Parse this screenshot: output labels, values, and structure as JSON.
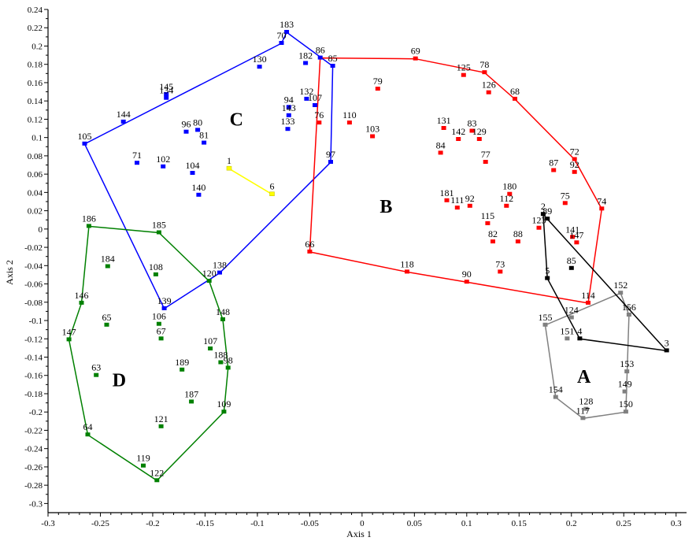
{
  "chart_data": {
    "type": "scatter",
    "xlabel": "Axis 1",
    "ylabel": "Axis 2",
    "xlim": [
      -0.3,
      0.31
    ],
    "ylim": [
      -0.31,
      0.24
    ],
    "x_ticks": [
      -0.3,
      -0.25,
      -0.2,
      -0.15,
      -0.1,
      -0.05,
      0,
      0.05,
      0.1,
      0.15,
      0.2,
      0.25,
      0.3
    ],
    "y_ticks": [
      -0.3,
      -0.28,
      -0.26,
      -0.24,
      -0.22,
      -0.2,
      -0.18,
      -0.16,
      -0.14,
      -0.12,
      -0.1,
      -0.08,
      -0.06,
      -0.04,
      -0.02,
      0,
      0.02,
      0.04,
      0.06,
      0.08,
      0.1,
      0.12,
      0.14,
      0.16,
      0.18,
      0.2,
      0.22,
      0.24
    ],
    "x_tick_labels": [
      "-0.3",
      "-0.25",
      "-0.2",
      "-0.15",
      "-0.1",
      "-0.05",
      "0",
      "0.05",
      "0.1",
      "0.15",
      "0.2",
      "0.25",
      "0.3"
    ],
    "y_tick_labels": [
      "-0.3",
      "-0.28",
      "-0.26",
      "-0.24",
      "-0.22",
      "-0.2",
      "-0.18",
      "-0.16",
      "-0.14",
      "-0.12",
      "-0.1",
      "-0.08",
      "-0.06",
      "-0.04",
      "-0.02",
      "0",
      "0.02",
      "0.04",
      "0.06",
      "0.08",
      "0.1",
      "0.12",
      "0.14",
      "0.16",
      "0.18",
      "0.2",
      "0.22",
      "0.24"
    ],
    "grid": false,
    "series": [
      {
        "label": "C",
        "color": "#0000ff",
        "label_pos": [
          -0.12,
          0.113
        ],
        "hull": [
          "105",
          "70",
          "183",
          "85",
          "97",
          "138",
          "139",
          "105"
        ],
        "points": [
          {
            "id": "183",
            "x": -0.072,
            "y": 0.215
          },
          {
            "id": "70",
            "x": -0.077,
            "y": 0.203
          },
          {
            "id": "182",
            "x": -0.054,
            "y": 0.181
          },
          {
            "id": "86",
            "x": -0.04,
            "y": 0.187
          },
          {
            "id": "85",
            "x": -0.028,
            "y": 0.178
          },
          {
            "id": "130",
            "x": -0.098,
            "y": 0.177
          },
          {
            "id": "145",
            "x": -0.187,
            "y": 0.147
          },
          {
            "id": "134",
            "x": -0.187,
            "y": 0.143
          },
          {
            "id": "144",
            "x": -0.228,
            "y": 0.117
          },
          {
            "id": "105",
            "x": -0.265,
            "y": 0.093
          },
          {
            "id": "132",
            "x": -0.053,
            "y": 0.142
          },
          {
            "id": "107",
            "x": -0.045,
            "y": 0.135
          },
          {
            "id": "94",
            "x": -0.07,
            "y": 0.133
          },
          {
            "id": "143",
            "x": -0.07,
            "y": 0.124
          },
          {
            "id": "133",
            "x": -0.071,
            "y": 0.109
          },
          {
            "id": "80",
            "x": -0.157,
            "y": 0.108
          },
          {
            "id": "96",
            "x": -0.168,
            "y": 0.106
          },
          {
            "id": "81",
            "x": -0.151,
            "y": 0.094
          },
          {
            "id": "71",
            "x": -0.215,
            "y": 0.072
          },
          {
            "id": "102",
            "x": -0.19,
            "y": 0.068
          },
          {
            "id": "104",
            "x": -0.162,
            "y": 0.061
          },
          {
            "id": "140",
            "x": -0.156,
            "y": 0.037
          },
          {
            "id": "97",
            "x": -0.03,
            "y": 0.073
          },
          {
            "id": "138",
            "x": -0.136,
            "y": -0.048
          },
          {
            "id": "139",
            "x": -0.189,
            "y": -0.087
          }
        ]
      },
      {
        "label": "B",
        "color": "#ff0000",
        "label_pos": [
          0.023,
          0.018
        ],
        "hull": [
          "86",
          "69",
          "78",
          "68",
          "72",
          "74",
          "114",
          "90",
          "118",
          "66",
          "86"
        ],
        "points": [
          {
            "id": "69",
            "x": 0.051,
            "y": 0.186
          },
          {
            "id": "78",
            "x": 0.117,
            "y": 0.171
          },
          {
            "id": "125",
            "x": 0.097,
            "y": 0.168
          },
          {
            "id": "126",
            "x": 0.121,
            "y": 0.149
          },
          {
            "id": "68",
            "x": 0.146,
            "y": 0.142
          },
          {
            "id": "79",
            "x": 0.015,
            "y": 0.153
          },
          {
            "id": "110",
            "x": -0.012,
            "y": 0.116
          },
          {
            "id": "76",
            "x": -0.041,
            "y": 0.116
          },
          {
            "id": "103",
            "x": 0.01,
            "y": 0.101
          },
          {
            "id": "131",
            "x": 0.078,
            "y": 0.11
          },
          {
            "id": "83",
            "x": 0.105,
            "y": 0.107
          },
          {
            "id": "142",
            "x": 0.092,
            "y": 0.098
          },
          {
            "id": "129",
            "x": 0.112,
            "y": 0.098
          },
          {
            "id": "84",
            "x": 0.075,
            "y": 0.083
          },
          {
            "id": "77",
            "x": 0.118,
            "y": 0.073
          },
          {
            "id": "72",
            "x": 0.203,
            "y": 0.076
          },
          {
            "id": "87",
            "x": 0.183,
            "y": 0.064
          },
          {
            "id": "92",
            "x": 0.203,
            "y": 0.062
          },
          {
            "id": "74",
            "x": 0.229,
            "y": 0.022
          },
          {
            "id": "180",
            "x": 0.141,
            "y": 0.038
          },
          {
            "id": "181",
            "x": 0.081,
            "y": 0.031
          },
          {
            "id": "111",
            "x": 0.091,
            "y": 0.023
          },
          {
            "id": "92",
            "x": 0.103,
            "y": 0.025
          },
          {
            "id": "112",
            "x": 0.138,
            "y": 0.025
          },
          {
            "id": "75",
            "x": 0.194,
            "y": 0.028
          },
          {
            "id": "115",
            "x": 0.12,
            "y": 0.006
          },
          {
            "id": "82",
            "x": 0.125,
            "y": -0.014
          },
          {
            "id": "88",
            "x": 0.149,
            "y": -0.014
          },
          {
            "id": "123",
            "x": 0.169,
            "y": 0.001
          },
          {
            "id": "141",
            "x": 0.201,
            "y": -0.009
          },
          {
            "id": "147",
            "x": 0.205,
            "y": -0.015
          },
          {
            "id": "66",
            "x": -0.05,
            "y": -0.025
          },
          {
            "id": "118",
            "x": 0.043,
            "y": -0.047
          },
          {
            "id": "73",
            "x": 0.132,
            "y": -0.047
          },
          {
            "id": "90",
            "x": 0.1,
            "y": -0.058
          },
          {
            "id": "114",
            "x": 0.216,
            "y": -0.081
          }
        ]
      },
      {
        "label": "D",
        "color": "#008000",
        "label_pos": [
          -0.232,
          -0.172
        ],
        "hull": [
          "186",
          "185",
          "120",
          "148",
          "98",
          "109",
          "122",
          "64",
          "147",
          "146",
          "186"
        ],
        "points": [
          {
            "id": "186",
            "x": -0.261,
            "y": 0.003
          },
          {
            "id": "185",
            "x": -0.194,
            "y": -0.004
          },
          {
            "id": "184",
            "x": -0.243,
            "y": -0.041
          },
          {
            "id": "108",
            "x": -0.197,
            "y": -0.05
          },
          {
            "id": "120",
            "x": -0.146,
            "y": -0.057
          },
          {
            "id": "146",
            "x": -0.268,
            "y": -0.081
          },
          {
            "id": "65",
            "x": -0.244,
            "y": -0.105
          },
          {
            "id": "106",
            "x": -0.194,
            "y": -0.104
          },
          {
            "id": "148",
            "x": -0.133,
            "y": -0.099
          },
          {
            "id": "67",
            "x": -0.192,
            "y": -0.12
          },
          {
            "id": "147",
            "x": -0.28,
            "y": -0.121
          },
          {
            "id": "107",
            "x": -0.145,
            "y": -0.131
          },
          {
            "id": "188",
            "x": -0.135,
            "y": -0.146
          },
          {
            "id": "98",
            "x": -0.128,
            "y": -0.152
          },
          {
            "id": "189",
            "x": -0.172,
            "y": -0.154
          },
          {
            "id": "63",
            "x": -0.254,
            "y": -0.16
          },
          {
            "id": "187",
            "x": -0.163,
            "y": -0.189
          },
          {
            "id": "109",
            "x": -0.132,
            "y": -0.2
          },
          {
            "id": "121",
            "x": -0.192,
            "y": -0.216
          },
          {
            "id": "64",
            "x": -0.262,
            "y": -0.225
          },
          {
            "id": "119",
            "x": -0.209,
            "y": -0.259
          },
          {
            "id": "122",
            "x": -0.196,
            "y": -0.275
          }
        ]
      },
      {
        "label": "A",
        "color": "#808080",
        "label_pos": [
          0.212,
          -0.168
        ],
        "hull": [
          "152",
          "156",
          "150",
          "117",
          "154",
          "155",
          "152"
        ],
        "points": [
          {
            "id": "152",
            "x": 0.247,
            "y": -0.07
          },
          {
            "id": "156",
            "x": 0.255,
            "y": -0.094
          },
          {
            "id": "124",
            "x": 0.2,
            "y": -0.097
          },
          {
            "id": "155",
            "x": 0.175,
            "y": -0.105
          },
          {
            "id": "151",
            "x": 0.196,
            "y": -0.12
          },
          {
            "id": "153",
            "x": 0.253,
            "y": -0.156
          },
          {
            "id": "154",
            "x": 0.185,
            "y": -0.184
          },
          {
            "id": "149",
            "x": 0.251,
            "y": -0.178
          },
          {
            "id": "128",
            "x": 0.214,
            "y": -0.197
          },
          {
            "id": "150",
            "x": 0.252,
            "y": -0.2
          },
          {
            "id": "117",
            "x": 0.211,
            "y": -0.207
          }
        ]
      },
      {
        "label": "",
        "color": "#000000",
        "hull": [
          "2",
          "5",
          "4",
          "3",
          "89",
          "2"
        ],
        "points": [
          {
            "id": "2",
            "x": 0.173,
            "y": 0.016
          },
          {
            "id": "89",
            "x": 0.177,
            "y": 0.011
          },
          {
            "id": "85",
            "x": 0.2,
            "y": -0.043
          },
          {
            "id": "5",
            "x": 0.177,
            "y": -0.054
          },
          {
            "id": "4",
            "x": 0.208,
            "y": -0.12
          },
          {
            "id": "3",
            "x": 0.291,
            "y": -0.133
          }
        ]
      },
      {
        "label": "",
        "color": "#ffff00",
        "hull": [
          "1",
          "6"
        ],
        "points": [
          {
            "id": "1",
            "x": -0.127,
            "y": 0.066
          },
          {
            "id": "6",
            "x": -0.086,
            "y": 0.038
          }
        ]
      }
    ]
  }
}
